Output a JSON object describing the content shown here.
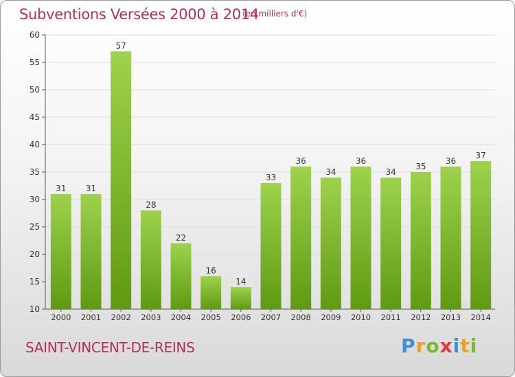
{
  "header": {
    "title": "Subventions Versées 2000 à 2014",
    "unit_note": "(en milliers d'€)"
  },
  "footer": {
    "commune": "SAINT-VINCENT-DE-REINS"
  },
  "logo": {
    "text": "Proxiti",
    "letters": [
      {
        "char": "P",
        "color": "#3b8fd4"
      },
      {
        "char": "r",
        "color": "#e8a21c"
      },
      {
        "char": "o",
        "color": "#7cb82f"
      },
      {
        "char": "x",
        "color": "#d93a3a"
      },
      {
        "char": "i",
        "color": "#3b8fd4"
      },
      {
        "char": "t",
        "color": "#e8a21c"
      },
      {
        "char": "i",
        "color": "#7cb82f"
      }
    ]
  },
  "colors": {
    "accent": "#b0305a",
    "bar_top": "#9ed24c",
    "bar_bottom": "#5f9a12"
  },
  "chart_data": {
    "type": "bar",
    "categories": [
      "2000",
      "2001",
      "2002",
      "2003",
      "2004",
      "2005",
      "2006",
      "2007",
      "2008",
      "2009",
      "2010",
      "2011",
      "2012",
      "2013",
      "2014"
    ],
    "values": [
      31,
      31,
      57,
      28,
      22,
      16,
      14,
      33,
      36,
      34,
      36,
      34,
      35,
      36,
      37
    ],
    "ylim": [
      10,
      60
    ],
    "yticks": [
      10,
      15,
      20,
      25,
      30,
      35,
      40,
      45,
      50,
      55,
      60
    ],
    "grid": true
  }
}
